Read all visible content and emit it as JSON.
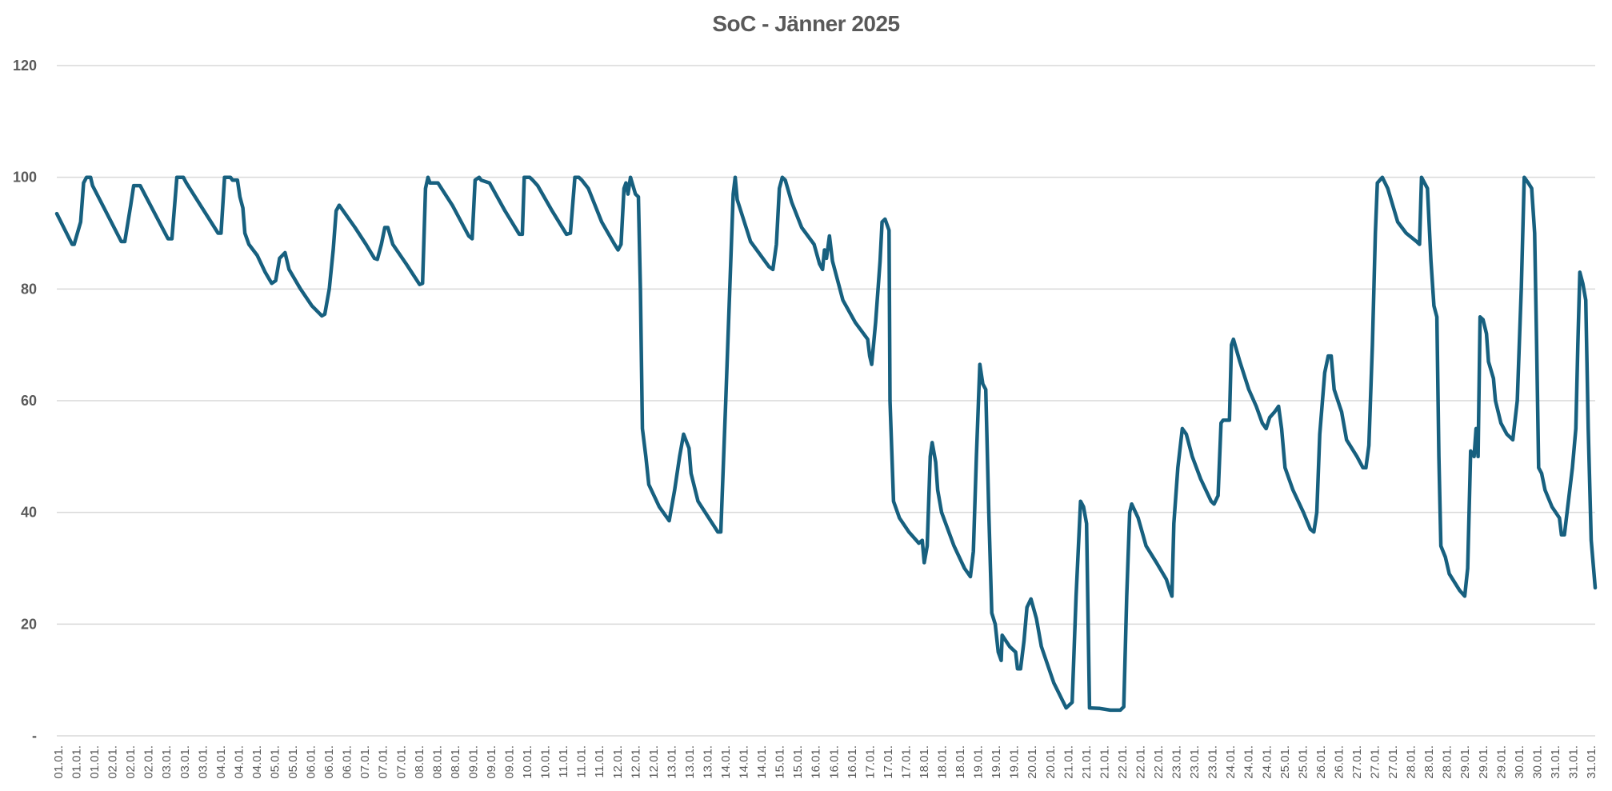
{
  "chart_data": {
    "type": "line",
    "title": "SoC - Jänner 2025",
    "xlabel": "",
    "ylabel": "",
    "ylim": [
      0,
      120
    ],
    "xlim": [
      1,
      32
    ],
    "y_ticks": [
      0,
      20,
      40,
      60,
      80,
      100,
      120
    ],
    "y_tick_labels": [
      "-",
      "20",
      "40",
      "60",
      "80",
      "100",
      "120"
    ],
    "grid": "horizontal",
    "legend": "none",
    "line_color": "#17607f",
    "grid_color": "#d9d9d9",
    "x_tick_labels": [
      "01.01.",
      "01.01.",
      "01.01.",
      "02.01.",
      "02.01.",
      "02.01.",
      "03.01.",
      "03.01.",
      "03.01.",
      "04.01.",
      "04.01.",
      "04.01.",
      "05.01.",
      "05.01.",
      "06.01.",
      "06.01.",
      "06.01.",
      "07.01.",
      "07.01.",
      "07.01.",
      "08.01.",
      "08.01.",
      "08.01.",
      "09.01.",
      "09.01.",
      "09.01.",
      "10.01.",
      "10.01.",
      "11.01.",
      "11.01.",
      "11.01.",
      "12.01.",
      "12.01.",
      "12.01.",
      "13.01.",
      "13.01.",
      "13.01.",
      "14.01.",
      "14.01.",
      "14.01.",
      "15.01.",
      "15.01.",
      "16.01.",
      "16.01.",
      "16.01.",
      "17.01.",
      "17.01.",
      "17.01.",
      "18.01.",
      "18.01.",
      "18.01.",
      "19.01.",
      "19.01.",
      "19.01.",
      "20.01.",
      "20.01.",
      "21.01.",
      "21.01.",
      "21.01.",
      "22.01.",
      "22.01.",
      "22.01.",
      "23.01.",
      "23.01.",
      "23.01.",
      "24.01.",
      "24.01.",
      "24.01.",
      "25.01.",
      "25.01.",
      "26.01.",
      "26.01.",
      "27.01.",
      "27.01.",
      "27.01.",
      "28.01.",
      "28.01.",
      "28.01.",
      "29.01.",
      "29.01.",
      "29.01.",
      "30.01.",
      "30.01.",
      "31.01.",
      "31.01.",
      "31.01."
    ],
    "series": [
      {
        "x": [
          1.0,
          1.31,
          1.35,
          1.48,
          1.54,
          1.6,
          1.68,
          1.72,
          2.3,
          2.37,
          2.49,
          2.55,
          2.68,
          3.24,
          3.32,
          3.42,
          3.55,
          3.61,
          4.25,
          4.31,
          4.38,
          4.5,
          4.54,
          4.64,
          4.69,
          4.75,
          4.79,
          4.87,
          5.04,
          5.2,
          5.33,
          5.41,
          5.49,
          5.6,
          5.68,
          5.91,
          6.14,
          6.34,
          6.4,
          6.49,
          6.57,
          6.63,
          6.69,
          7.01,
          7.23,
          7.4,
          7.46,
          7.54,
          7.61,
          7.67,
          7.77,
          8.04,
          8.31,
          8.37,
          8.43,
          8.48,
          8.52,
          8.68,
          8.97,
          9.3,
          9.37,
          9.43,
          9.51,
          9.55,
          9.72,
          10.03,
          10.32,
          10.38,
          10.42,
          10.53,
          10.59,
          10.69,
          10.98,
          11.27,
          11.35,
          11.44,
          11.52,
          11.58,
          11.71,
          11.98,
          12.24,
          12.31,
          12.37,
          12.43,
          12.47,
          12.51,
          12.56,
          12.66,
          12.72,
          12.76,
          12.8,
          12.87,
          12.93,
          13.14,
          13.34,
          13.45,
          13.55,
          13.63,
          13.74,
          13.78,
          13.92,
          14.32,
          14.38,
          14.48,
          14.56,
          14.63,
          14.67,
          14.71,
          14.98,
          15.35,
          15.43,
          15.5,
          15.56,
          15.62,
          15.68,
          15.81,
          16.01,
          16.26,
          16.37,
          16.43,
          16.47,
          16.51,
          16.57,
          16.63,
          16.84,
          17.09,
          17.34,
          17.38,
          17.42,
          17.5,
          17.59,
          17.63,
          17.69,
          17.77,
          17.79,
          17.86,
          17.98,
          18.17,
          18.37,
          18.44,
          18.48,
          18.54,
          18.6,
          18.64,
          18.71,
          18.75,
          18.83,
          19.08,
          19.29,
          19.41,
          19.47,
          19.53,
          19.6,
          19.66,
          19.72,
          19.78,
          19.84,
          19.91,
          19.97,
          20.03,
          20.05,
          20.2,
          20.32,
          20.36,
          20.42,
          20.49,
          20.55,
          20.63,
          20.74,
          20.84,
          21.09,
          21.34,
          21.46,
          21.54,
          21.63,
          21.69,
          21.75,
          21.81,
          22.02,
          22.23,
          22.43,
          22.5,
          22.56,
          22.62,
          22.66,
          22.79,
          22.95,
          23.16,
          23.36,
          23.43,
          23.47,
          23.51,
          23.59,
          23.68,
          23.76,
          23.88,
          24.05,
          24.26,
          24.32,
          24.4,
          24.46,
          24.5,
          24.63,
          24.67,
          24.71,
          24.84,
          25.02,
          25.17,
          25.29,
          25.37,
          25.44,
          25.54,
          25.62,
          25.68,
          25.75,
          25.91,
          26.12,
          26.26,
          26.33,
          26.39,
          26.45,
          26.55,
          26.62,
          26.68,
          26.74,
          26.89,
          26.99,
          27.2,
          27.32,
          27.38,
          27.44,
          27.51,
          27.57,
          27.61,
          27.71,
          27.82,
          28.02,
          28.19,
          28.4,
          28.46,
          28.5,
          28.56,
          28.62,
          28.69,
          28.75,
          28.81,
          28.85,
          28.89,
          28.98,
          29.06,
          29.27,
          29.37,
          29.43,
          29.49,
          29.56,
          29.6,
          29.64,
          29.68,
          29.74,
          29.81,
          29.85,
          29.95,
          29.99,
          30.1,
          30.22,
          30.34,
          30.43,
          30.51,
          30.57,
          30.65,
          30.72,
          30.78,
          30.82,
          30.86,
          30.92,
          30.99,
          31.13,
          31.28,
          31.32,
          31.38,
          31.46,
          31.54,
          31.61,
          31.65,
          31.69,
          31.75,
          31.81,
          31.86,
          31.92,
          32.0
        ],
        "y": [
          93.5,
          88,
          88,
          92,
          99,
          100,
          100,
          98.5,
          88.5,
          88.5,
          95,
          98.5,
          98.5,
          89,
          89,
          100,
          100,
          99,
          90,
          90,
          100,
          100,
          99.5,
          99.5,
          96.5,
          94.5,
          90,
          88,
          86,
          83,
          81,
          81.5,
          85.5,
          86.5,
          83.5,
          80,
          77,
          75.2,
          75.5,
          80,
          87,
          94,
          95,
          91,
          88,
          85.5,
          85.3,
          88,
          91,
          91,
          88,
          84.5,
          80.8,
          81,
          98,
          100,
          99,
          99,
          95,
          89.5,
          89,
          99.5,
          100,
          99.5,
          99,
          94,
          89.8,
          89.8,
          100,
          100,
          99.5,
          98.5,
          94,
          89.8,
          90,
          100,
          100,
          99.5,
          98,
          92,
          88,
          87,
          88,
          98,
          99,
          97,
          100,
          97,
          96.5,
          80,
          55,
          50,
          45,
          41,
          38.5,
          44,
          50,
          54,
          51.5,
          47,
          42,
          36.5,
          36.5,
          60,
          80,
          97,
          100,
          96,
          88.5,
          84,
          83.5,
          88,
          98,
          100,
          99.5,
          95.5,
          91,
          88,
          84.5,
          83.5,
          87,
          85.5,
          89.5,
          85,
          78,
          74,
          71,
          68,
          66.5,
          74,
          85,
          92,
          92.5,
          90.5,
          60,
          42,
          39,
          36.5,
          34.5,
          35,
          31,
          34,
          50,
          52.5,
          49,
          44,
          40,
          34,
          30,
          28.5,
          33,
          50,
          66.5,
          63,
          62,
          40,
          22,
          20,
          15,
          13.5,
          18,
          16,
          15,
          12,
          12,
          17,
          23,
          24.5,
          21,
          16,
          9.5,
          5,
          6,
          25,
          42,
          41,
          38,
          5,
          4.9,
          4.6,
          4.6,
          5.2,
          25,
          40,
          41.5,
          39,
          34,
          31,
          28,
          26,
          25,
          38,
          48,
          55,
          54,
          50,
          46,
          42,
          41.5,
          43,
          56,
          56.5,
          56.5,
          70,
          71,
          67,
          62,
          59,
          56,
          55,
          57,
          58,
          59,
          55,
          48,
          44,
          40,
          37,
          36.5,
          40,
          54,
          65,
          68,
          68,
          62,
          58,
          53,
          50,
          48,
          48,
          52,
          70,
          90,
          99,
          100,
          98,
          92,
          90,
          88.5,
          88,
          100,
          99,
          98,
          85,
          77,
          75,
          50,
          34,
          32,
          29,
          26,
          25,
          30,
          51,
          50,
          55,
          50,
          75,
          74.5,
          72,
          67,
          64,
          60,
          56,
          54,
          53,
          60,
          80,
          100,
          99,
          98,
          90,
          70,
          48,
          47,
          44,
          41,
          39,
          36,
          36,
          42,
          48,
          55,
          70,
          83,
          81,
          78,
          55,
          35,
          26.5
        ]
      }
    ]
  }
}
